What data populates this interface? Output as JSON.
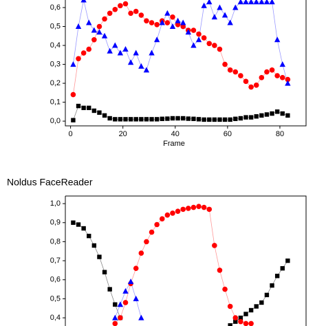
{
  "chart_data": [
    {
      "type": "scatter",
      "xlabel": "Frame",
      "x": [
        1,
        3,
        5,
        7,
        9,
        11,
        13,
        15,
        17,
        19,
        21,
        23,
        25,
        27,
        29,
        31,
        33,
        35,
        37,
        39,
        41,
        43,
        45,
        47,
        49,
        51,
        53,
        55,
        57,
        59,
        61,
        63,
        65,
        67,
        69,
        71,
        73,
        75,
        77,
        79,
        81,
        83
      ],
      "xlim": [
        -2,
        90
      ],
      "xticks": [
        0,
        20,
        40,
        60,
        80
      ],
      "ylim": [
        -0.025,
        0.64
      ],
      "yticks": [
        {
          "value": 0,
          "label": "0,0"
        },
        {
          "value": 0.1,
          "label": "0,1"
        },
        {
          "value": 0.2,
          "label": "0,2"
        },
        {
          "value": 0.3,
          "label": "0,3"
        },
        {
          "value": 0.4,
          "label": "0,4"
        },
        {
          "value": 0.5,
          "label": "0,5"
        },
        {
          "value": 0.6,
          "label": "0,6"
        }
      ],
      "series": [
        {
          "marker": "square",
          "color": "#000000",
          "line_color": "#888888",
          "values": [
            0.005,
            0.08,
            0.07,
            0.07,
            0.055,
            0.045,
            0.03,
            0.015,
            0.01,
            0.01,
            0.01,
            0.01,
            0.01,
            0.01,
            0.01,
            0.01,
            0.01,
            0.012,
            0.013,
            0.015,
            0.015,
            0.015,
            0.013,
            0.012,
            0.01,
            0.008,
            0.008,
            0.008,
            0.008,
            0.008,
            0.008,
            0.012,
            0.015,
            0.02,
            0.02,
            0.025,
            0.03,
            0.035,
            0.04,
            0.05,
            0.04,
            0.03
          ]
        },
        {
          "marker": "circle",
          "color": "#ff0000",
          "line_color": "#ff9999",
          "values": [
            0.14,
            0.33,
            0.36,
            0.38,
            0.43,
            0.5,
            0.54,
            0.57,
            0.59,
            0.61,
            0.62,
            0.57,
            0.58,
            0.56,
            0.53,
            0.52,
            0.51,
            0.53,
            0.52,
            0.55,
            0.51,
            0.5,
            0.48,
            0.48,
            0.46,
            0.44,
            0.41,
            0.4,
            0.38,
            0.3,
            0.27,
            0.26,
            0.24,
            0.21,
            0.18,
            0.19,
            0.23,
            0.26,
            0.27,
            0.24,
            0.23,
            0.22
          ]
        },
        {
          "marker": "triangle",
          "color": "#0000ff",
          "line_color": "#9999ff",
          "values": [
            0.3,
            0.5,
            0.64,
            0.52,
            0.48,
            0.47,
            0.45,
            0.37,
            0.4,
            0.36,
            0.38,
            0.31,
            0.36,
            0.29,
            0.27,
            0.36,
            0.43,
            0.52,
            0.57,
            0.5,
            0.53,
            0.52,
            0.47,
            0.4,
            0.43,
            0.61,
            0.63,
            0.55,
            0.6,
            0.56,
            0.52,
            0.6,
            0.63,
            0.63,
            0.63,
            0.63,
            0.63,
            0.63,
            0.63,
            0.43,
            0.3,
            0.2
          ]
        }
      ]
    },
    {
      "type": "scatter",
      "title": "Noldus FaceReader",
      "x": [
        1,
        3,
        5,
        7,
        9,
        11,
        13,
        15,
        17,
        19,
        21,
        23,
        25,
        27,
        29,
        31,
        33,
        35,
        37,
        39,
        41,
        43,
        45,
        47,
        49,
        51,
        53,
        55,
        57,
        59,
        61,
        63,
        65,
        67,
        69,
        71,
        73,
        75,
        77,
        79,
        81,
        83
      ],
      "xlim": [
        -2,
        90
      ],
      "ylim": [
        0.357,
        1.04
      ],
      "yticks": [
        {
          "value": 0.4,
          "label": "0,4"
        },
        {
          "value": 0.5,
          "label": "0,5"
        },
        {
          "value": 0.6,
          "label": "0,6"
        },
        {
          "value": 0.7,
          "label": "0,7"
        },
        {
          "value": 0.8,
          "label": "0,8"
        },
        {
          "value": 0.9,
          "label": "0,9"
        },
        {
          "value": 1,
          "label": "1,0"
        }
      ],
      "series": [
        {
          "marker": "square",
          "color": "#000000",
          "line_color": "#888888",
          "values": [
            0.9,
            0.89,
            0.87,
            0.83,
            0.78,
            0.72,
            0.64,
            0.55,
            0.47,
            0.4,
            null,
            null,
            null,
            null,
            null,
            null,
            null,
            null,
            null,
            null,
            null,
            null,
            null,
            null,
            null,
            null,
            null,
            null,
            null,
            null,
            0.36,
            0.38,
            0.4,
            0.42,
            0.44,
            0.46,
            0.48,
            0.52,
            0.57,
            0.62,
            0.66,
            0.7
          ]
        },
        {
          "marker": "circle",
          "color": "#ff0000",
          "line_color": "#ff9999",
          "values": [
            null,
            null,
            null,
            null,
            null,
            null,
            null,
            null,
            0.37,
            0.4,
            0.48,
            0.58,
            0.66,
            0.74,
            0.8,
            0.85,
            0.89,
            0.92,
            0.94,
            0.95,
            0.96,
            0.97,
            0.975,
            0.98,
            0.985,
            0.98,
            0.97,
            0.78,
            0.65,
            0.55,
            0.46,
            0.4,
            0.38,
            0.37,
            0.37,
            null,
            null,
            null,
            null,
            null,
            null,
            null
          ]
        },
        {
          "marker": "triangle",
          "color": "#0000ff",
          "line_color": "#9999ff",
          "values": [
            null,
            null,
            null,
            null,
            null,
            null,
            null,
            null,
            0.4,
            0.47,
            0.54,
            0.59,
            0.5,
            0.4,
            null,
            null,
            null,
            null,
            null,
            null,
            null,
            null,
            null,
            null,
            null,
            null,
            null,
            null,
            null,
            null,
            null,
            null,
            null,
            null,
            null,
            null,
            null,
            null,
            null,
            null,
            null,
            null
          ]
        }
      ]
    }
  ]
}
